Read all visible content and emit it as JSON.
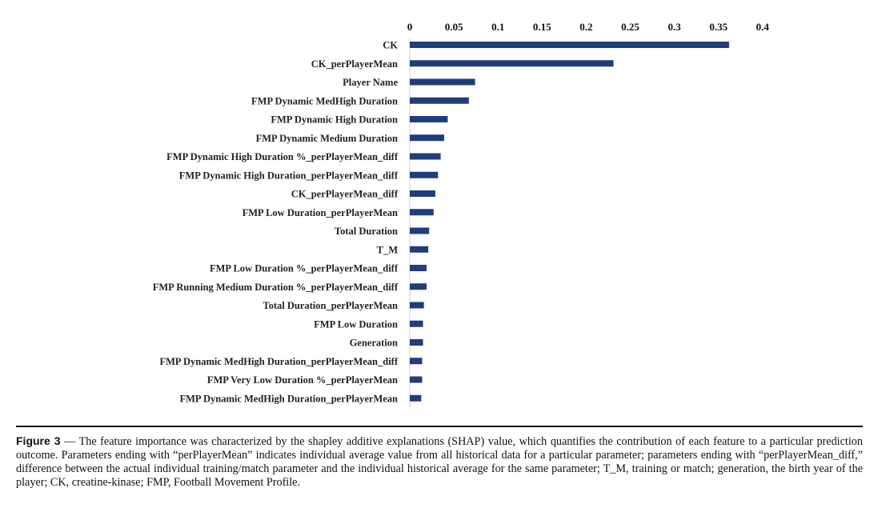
{
  "chart_data": {
    "type": "bar",
    "orientation": "horizontal",
    "title": "",
    "xlabel": "",
    "ylabel": "",
    "xlim": [
      0,
      0.4
    ],
    "x_ticks": [
      "0",
      "0.05",
      "0.1",
      "0.15",
      "0.2",
      "0.25",
      "0.3",
      "0.35",
      "0.4"
    ],
    "x_tick_values": [
      0,
      0.05,
      0.1,
      0.15,
      0.2,
      0.25,
      0.3,
      0.35,
      0.4
    ],
    "x_axis_position": "top",
    "grid": false,
    "bar_color": "#1f3d7a",
    "categories": [
      "CK",
      "CK_perPlayerMean",
      "Player Name",
      "FMP Dynamic MedHigh Duration",
      "FMP Dynamic High Duration",
      "FMP Dynamic Medium Duration",
      "FMP Dynamic High Duration %_perPlayerMean_diff",
      "FMP Dynamic High Duration_perPlayerMean_diff",
      "CK_perPlayerMean_diff",
      "FMP Low Duration_perPlayerMean",
      "Total Duration",
      "T_M",
      "FMP Low Duration %_perPlayerMean_diff",
      "FMP Running Medium Duration %_perPlayerMean_diff",
      "Total Duration_perPlayerMean",
      "FMP Low Duration",
      "Generation",
      "FMP Dynamic MedHigh Duration_perPlayerMean_diff",
      "FMP Very Low Duration %_perPlayerMean",
      "FMP Dynamic MedHigh Duration_perPlayerMean"
    ],
    "values": [
      0.362,
      0.231,
      0.074,
      0.067,
      0.043,
      0.039,
      0.035,
      0.032,
      0.029,
      0.027,
      0.022,
      0.021,
      0.019,
      0.019,
      0.016,
      0.015,
      0.015,
      0.014,
      0.014,
      0.013
    ]
  },
  "caption": {
    "label": "Figure 3",
    "text": " — The feature importance was characterized by the shapley additive explanations (SHAP) value, which quantifies the contribution of each feature to a particular prediction outcome. Parameters ending with “perPlayerMean” indicates individual average value from all historical data for a particular parameter; parameters ending with “perPlayerMean_diff,” difference between the actual individual training/match parameter and the individual historical average for the same parameter; T_M, training or match; generation, the birth year of the player; CK, creatine-kinase; FMP, Football Movement Profile."
  }
}
